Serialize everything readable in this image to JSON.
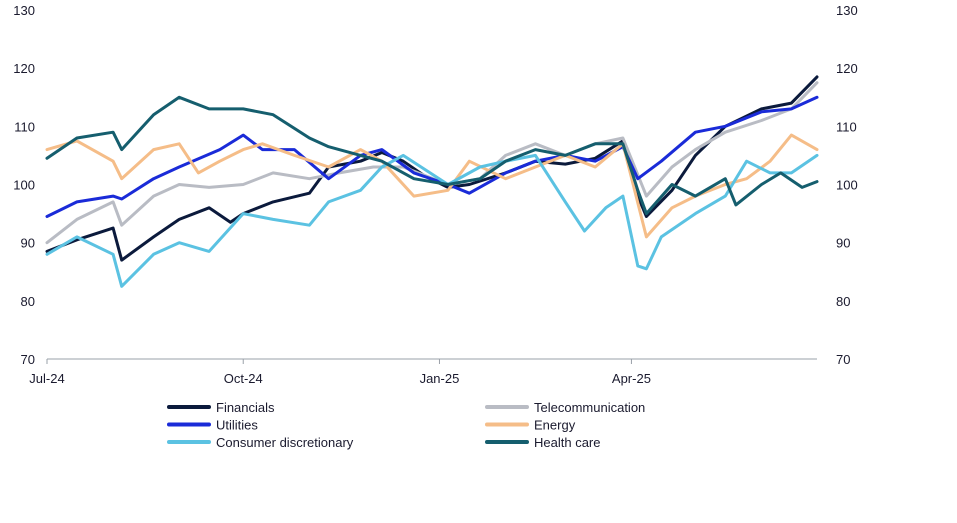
{
  "chart_data": {
    "type": "line",
    "title": "",
    "xlabel": "",
    "ylabel": "",
    "ylim": [
      70,
      130
    ],
    "yticks": [
      70,
      80,
      90,
      100,
      110,
      120,
      130
    ],
    "x_range": [
      "2024-07-01",
      "2025-06-27"
    ],
    "x_ticks": [
      {
        "date": "2024-07-01",
        "label": "Jul-24"
      },
      {
        "date": "2024-10-01",
        "label": "Oct-24"
      },
      {
        "date": "2025-01-01",
        "label": "Jan-25"
      },
      {
        "date": "2025-04-01",
        "label": "Apr-25"
      }
    ],
    "grid": false,
    "legend_position": "bottom",
    "series": [
      {
        "name": "Financials",
        "color": "#0b1a3c",
        "points": [
          [
            "2024-07-01",
            88.5
          ],
          [
            "2024-07-15",
            90.5
          ],
          [
            "2024-08-01",
            92.5
          ],
          [
            "2024-08-05",
            87
          ],
          [
            "2024-08-20",
            91
          ],
          [
            "2024-09-01",
            94
          ],
          [
            "2024-09-15",
            96
          ],
          [
            "2024-09-25",
            93.5
          ],
          [
            "2024-10-01",
            95
          ],
          [
            "2024-10-15",
            97
          ],
          [
            "2024-11-01",
            98.5
          ],
          [
            "2024-11-10",
            103
          ],
          [
            "2024-11-25",
            104
          ],
          [
            "2024-12-05",
            105.5
          ],
          [
            "2024-12-15",
            104
          ],
          [
            "2024-12-25",
            101.5
          ],
          [
            "2025-01-05",
            99.5
          ],
          [
            "2025-01-15",
            100
          ],
          [
            "2025-02-01",
            102
          ],
          [
            "2025-02-15",
            104
          ],
          [
            "2025-03-01",
            103.5
          ],
          [
            "2025-03-15",
            104.5
          ],
          [
            "2025-03-28",
            107.5
          ],
          [
            "2025-04-04",
            98
          ],
          [
            "2025-04-08",
            94.5
          ],
          [
            "2025-04-20",
            99
          ],
          [
            "2025-05-01",
            105
          ],
          [
            "2025-05-15",
            110
          ],
          [
            "2025-06-01",
            113
          ],
          [
            "2025-06-15",
            114
          ],
          [
            "2025-06-27",
            118.5
          ]
        ]
      },
      {
        "name": "Telecommunication",
        "color": "#b9bcc4",
        "points": [
          [
            "2024-07-01",
            90
          ],
          [
            "2024-07-15",
            94
          ],
          [
            "2024-08-01",
            97
          ],
          [
            "2024-08-05",
            93
          ],
          [
            "2024-08-20",
            98
          ],
          [
            "2024-09-01",
            100
          ],
          [
            "2024-09-15",
            99.5
          ],
          [
            "2024-10-01",
            100
          ],
          [
            "2024-10-15",
            102
          ],
          [
            "2024-11-01",
            101
          ],
          [
            "2024-11-15",
            102
          ],
          [
            "2024-12-01",
            103
          ],
          [
            "2024-12-15",
            103
          ],
          [
            "2025-01-05",
            100
          ],
          [
            "2025-01-20",
            101
          ],
          [
            "2025-02-01",
            105
          ],
          [
            "2025-02-15",
            107
          ],
          [
            "2025-03-01",
            105
          ],
          [
            "2025-03-15",
            107
          ],
          [
            "2025-03-28",
            108
          ],
          [
            "2025-04-08",
            98
          ],
          [
            "2025-04-20",
            103
          ],
          [
            "2025-05-01",
            106
          ],
          [
            "2025-05-15",
            109
          ],
          [
            "2025-06-01",
            111
          ],
          [
            "2025-06-15",
            113
          ],
          [
            "2025-06-27",
            117.5
          ]
        ]
      },
      {
        "name": "Utilities",
        "color": "#1a2bd8",
        "points": [
          [
            "2024-07-01",
            94.5
          ],
          [
            "2024-07-15",
            97
          ],
          [
            "2024-08-01",
            98
          ],
          [
            "2024-08-05",
            97.5
          ],
          [
            "2024-08-20",
            101
          ],
          [
            "2024-09-01",
            103
          ],
          [
            "2024-09-20",
            106
          ],
          [
            "2024-10-01",
            108.5
          ],
          [
            "2024-10-10",
            106
          ],
          [
            "2024-10-25",
            106
          ],
          [
            "2024-11-10",
            101
          ],
          [
            "2024-11-25",
            105
          ],
          [
            "2024-12-05",
            106
          ],
          [
            "2024-12-20",
            102
          ],
          [
            "2025-01-05",
            100
          ],
          [
            "2025-01-15",
            98.5
          ],
          [
            "2025-02-01",
            102
          ],
          [
            "2025-02-15",
            104
          ],
          [
            "2025-03-01",
            105
          ],
          [
            "2025-03-15",
            104
          ],
          [
            "2025-03-28",
            106.5
          ],
          [
            "2025-04-04",
            101
          ],
          [
            "2025-04-15",
            104
          ],
          [
            "2025-05-01",
            109
          ],
          [
            "2025-05-15",
            110
          ],
          [
            "2025-06-01",
            112.5
          ],
          [
            "2025-06-15",
            113
          ],
          [
            "2025-06-27",
            115
          ]
        ]
      },
      {
        "name": "Energy",
        "color": "#f5bd88",
        "points": [
          [
            "2024-07-01",
            106
          ],
          [
            "2024-07-15",
            107.5
          ],
          [
            "2024-08-01",
            104
          ],
          [
            "2024-08-05",
            101
          ],
          [
            "2024-08-20",
            106
          ],
          [
            "2024-09-01",
            107
          ],
          [
            "2024-09-10",
            102
          ],
          [
            "2024-09-20",
            104
          ],
          [
            "2024-10-01",
            106
          ],
          [
            "2024-10-10",
            107
          ],
          [
            "2024-10-25",
            105
          ],
          [
            "2024-11-10",
            103
          ],
          [
            "2024-11-25",
            106
          ],
          [
            "2024-12-05",
            104
          ],
          [
            "2024-12-20",
            98
          ],
          [
            "2025-01-05",
            99
          ],
          [
            "2025-01-15",
            104
          ],
          [
            "2025-02-01",
            101
          ],
          [
            "2025-02-15",
            103
          ],
          [
            "2025-03-01",
            105
          ],
          [
            "2025-03-15",
            103
          ],
          [
            "2025-03-28",
            107
          ],
          [
            "2025-04-08",
            91
          ],
          [
            "2025-04-20",
            96
          ],
          [
            "2025-05-01",
            98
          ],
          [
            "2025-05-15",
            100
          ],
          [
            "2025-05-25",
            101
          ],
          [
            "2025-06-05",
            104
          ],
          [
            "2025-06-15",
            108.5
          ],
          [
            "2025-06-27",
            106
          ]
        ]
      },
      {
        "name": "Consumer discretionary",
        "color": "#5bc2e2",
        "points": [
          [
            "2024-07-01",
            88
          ],
          [
            "2024-07-15",
            91
          ],
          [
            "2024-08-01",
            88
          ],
          [
            "2024-08-05",
            82.5
          ],
          [
            "2024-08-20",
            88
          ],
          [
            "2024-09-01",
            90
          ],
          [
            "2024-09-15",
            88.5
          ],
          [
            "2024-10-01",
            95
          ],
          [
            "2024-10-15",
            94
          ],
          [
            "2024-11-01",
            93
          ],
          [
            "2024-11-10",
            97
          ],
          [
            "2024-11-25",
            99
          ],
          [
            "2024-12-05",
            103
          ],
          [
            "2024-12-15",
            105
          ],
          [
            "2025-01-05",
            100
          ],
          [
            "2025-01-20",
            103
          ],
          [
            "2025-02-01",
            104
          ],
          [
            "2025-02-15",
            105
          ],
          [
            "2025-03-01",
            97
          ],
          [
            "2025-03-10",
            92
          ],
          [
            "2025-03-20",
            96
          ],
          [
            "2025-03-28",
            98
          ],
          [
            "2025-04-04",
            86
          ],
          [
            "2025-04-08",
            85.5
          ],
          [
            "2025-04-15",
            91
          ],
          [
            "2025-05-01",
            95
          ],
          [
            "2025-05-15",
            98
          ],
          [
            "2025-05-25",
            104
          ],
          [
            "2025-06-05",
            102
          ],
          [
            "2025-06-15",
            102
          ],
          [
            "2025-06-27",
            105
          ]
        ]
      },
      {
        "name": "Health care",
        "color": "#155e6e",
        "points": [
          [
            "2024-07-01",
            104.5
          ],
          [
            "2024-07-15",
            108
          ],
          [
            "2024-08-01",
            109
          ],
          [
            "2024-08-05",
            106
          ],
          [
            "2024-08-20",
            112
          ],
          [
            "2024-09-01",
            115
          ],
          [
            "2024-09-15",
            113
          ],
          [
            "2024-10-01",
            113
          ],
          [
            "2024-10-15",
            112
          ],
          [
            "2024-11-01",
            108
          ],
          [
            "2024-11-10",
            106.5
          ],
          [
            "2024-11-25",
            105
          ],
          [
            "2024-12-05",
            104
          ],
          [
            "2024-12-20",
            101
          ],
          [
            "2025-01-05",
            100
          ],
          [
            "2025-01-20",
            101
          ],
          [
            "2025-02-01",
            104
          ],
          [
            "2025-02-15",
            106
          ],
          [
            "2025-03-01",
            105
          ],
          [
            "2025-03-15",
            107
          ],
          [
            "2025-03-28",
            107
          ],
          [
            "2025-04-04",
            99
          ],
          [
            "2025-04-08",
            95
          ],
          [
            "2025-04-20",
            100
          ],
          [
            "2025-05-01",
            98
          ],
          [
            "2025-05-15",
            101
          ],
          [
            "2025-05-20",
            96.5
          ],
          [
            "2025-06-01",
            100
          ],
          [
            "2025-06-10",
            102
          ],
          [
            "2025-06-20",
            99.5
          ],
          [
            "2025-06-27",
            100.5
          ]
        ]
      }
    ]
  }
}
